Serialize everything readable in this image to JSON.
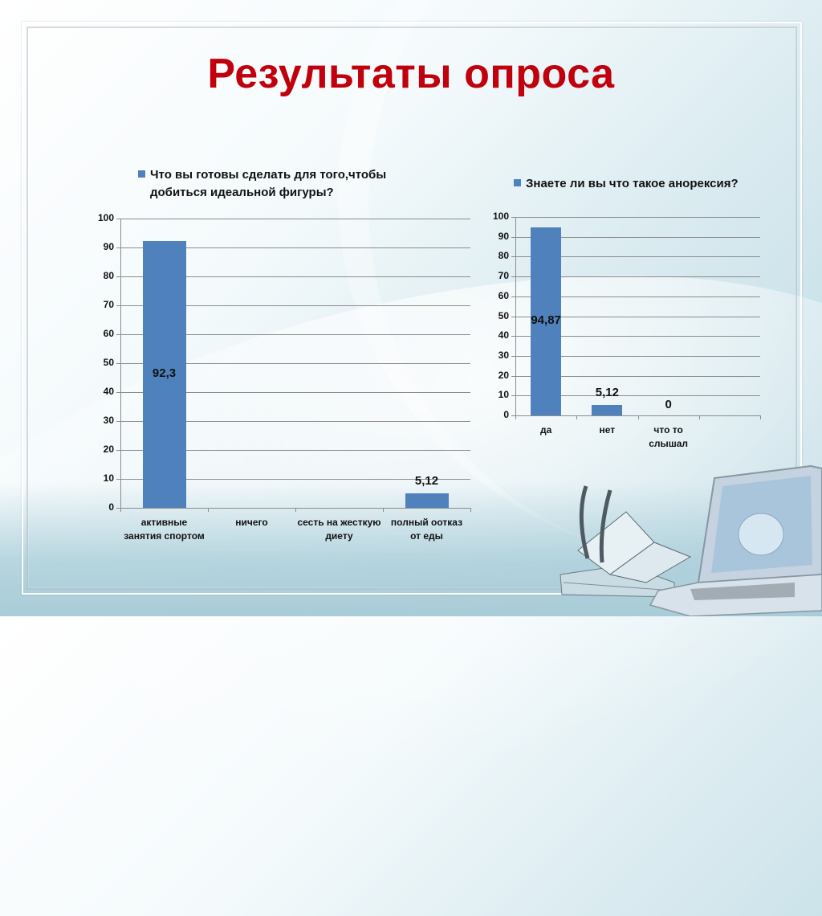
{
  "slide": {
    "title": "Результаты опроса",
    "colors": {
      "title": "#c0000c",
      "bar": "#4f81bd",
      "grid": "#8c8c8c"
    }
  },
  "chart_data": [
    {
      "type": "bar",
      "title": "Что вы готовы сделать для того,чтобы добиться идеальной фигуры?",
      "legend": [
        "Что вы готовы сделать для того,чтобы добиться идеальной фигуры?"
      ],
      "legend_lines": [
        "Что вы готовы сделать для того,чтобы",
        "добиться идеальной фигуры?"
      ],
      "legend_position": "top",
      "categories": [
        "активные занятия спортом",
        "ничего",
        "сесть на жесткую диету",
        "полный оотказ от еды"
      ],
      "category_lines": [
        [
          "активные",
          "занятия спортом"
        ],
        [
          "ничего",
          ""
        ],
        [
          "сесть на жесткую",
          "диету"
        ],
        [
          "полный оотказ",
          "от еды"
        ]
      ],
      "values": [
        92.3,
        0,
        0,
        5.12
      ],
      "data_labels": [
        "92,3",
        "",
        "",
        "5,12"
      ],
      "xlabel": "",
      "ylabel": "",
      "ylim": [
        0,
        100
      ],
      "yticks": [
        "0",
        "10",
        "20",
        "30",
        "40",
        "50",
        "60",
        "70",
        "80",
        "90",
        "100"
      ],
      "grid": true
    },
    {
      "type": "bar",
      "title": "Знаете ли вы что такое анорексия?",
      "legend": [
        "Знаете ли вы что такое анорексия?"
      ],
      "legend_position": "top",
      "categories": [
        "да",
        "нет",
        "что то слышал",
        ""
      ],
      "category_lines": [
        [
          "да",
          ""
        ],
        [
          "нет",
          ""
        ],
        [
          "что то",
          "слышал"
        ],
        [
          "",
          ""
        ]
      ],
      "values": [
        94.87,
        5.12,
        0,
        null
      ],
      "data_labels": [
        "94,87",
        "5,12",
        "0",
        ""
      ],
      "xlabel": "",
      "ylabel": "",
      "ylim": [
        0,
        100
      ],
      "yticks": [
        "0",
        "10",
        "20",
        "30",
        "40",
        "50",
        "60",
        "70",
        "80",
        "90",
        "100"
      ],
      "grid": true
    }
  ],
  "decoration": {
    "image": "laptop-book-quill-illustration"
  }
}
